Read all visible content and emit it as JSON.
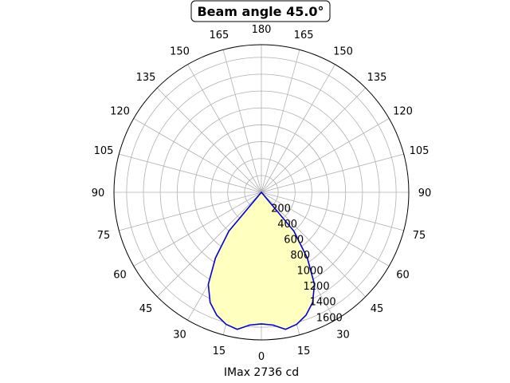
{
  "chart_data": {
    "type": "polar-line",
    "title": "Beam angle 45.0°",
    "xlabel": "IMax 2736 cd",
    "angle_tick_labels": [
      {
        "angle": 0,
        "label": "0"
      },
      {
        "angle": 15,
        "label": "15"
      },
      {
        "angle": 30,
        "label": "30"
      },
      {
        "angle": 45,
        "label": "45"
      },
      {
        "angle": 60,
        "label": "60"
      },
      {
        "angle": 75,
        "label": "75"
      },
      {
        "angle": 90,
        "label": "90"
      },
      {
        "angle": 105,
        "label": "105"
      },
      {
        "angle": 120,
        "label": "120"
      },
      {
        "angle": 135,
        "label": "135"
      },
      {
        "angle": 150,
        "label": "150"
      },
      {
        "angle": 165,
        "label": "165"
      },
      {
        "angle": 180,
        "label": "180"
      },
      {
        "angle": -165,
        "label": "165"
      },
      {
        "angle": -150,
        "label": "150"
      },
      {
        "angle": -135,
        "label": "135"
      },
      {
        "angle": -120,
        "label": "120"
      },
      {
        "angle": -105,
        "label": "105"
      },
      {
        "angle": -90,
        "label": "90"
      },
      {
        "angle": -75,
        "label": "75"
      },
      {
        "angle": -60,
        "label": "60"
      },
      {
        "angle": -45,
        "label": "45"
      },
      {
        "angle": -30,
        "label": "30"
      },
      {
        "angle": -15,
        "label": "15"
      }
    ],
    "radial_tick_labels": [
      "200",
      "400",
      "600",
      "800",
      "1000",
      "1200",
      "1400",
      "1600"
    ],
    "radial_ticks": [
      200,
      400,
      600,
      800,
      1000,
      1200,
      1400,
      1600
    ],
    "rlim": [
      0,
      1750
    ],
    "grid": true,
    "line_color": "#0000dd",
    "fill_color": "#ffffc0",
    "series": [
      {
        "angles": [
          -45,
          -40,
          -35,
          -30,
          -25,
          -20,
          -15,
          -10,
          -5,
          0,
          5,
          10,
          15,
          20,
          25,
          30,
          35,
          40,
          45
        ],
        "values": [
          0,
          600,
          950,
          1260,
          1440,
          1550,
          1620,
          1650,
          1580,
          1560,
          1580,
          1650,
          1620,
          1550,
          1440,
          1260,
          950,
          600,
          0
        ]
      }
    ]
  }
}
